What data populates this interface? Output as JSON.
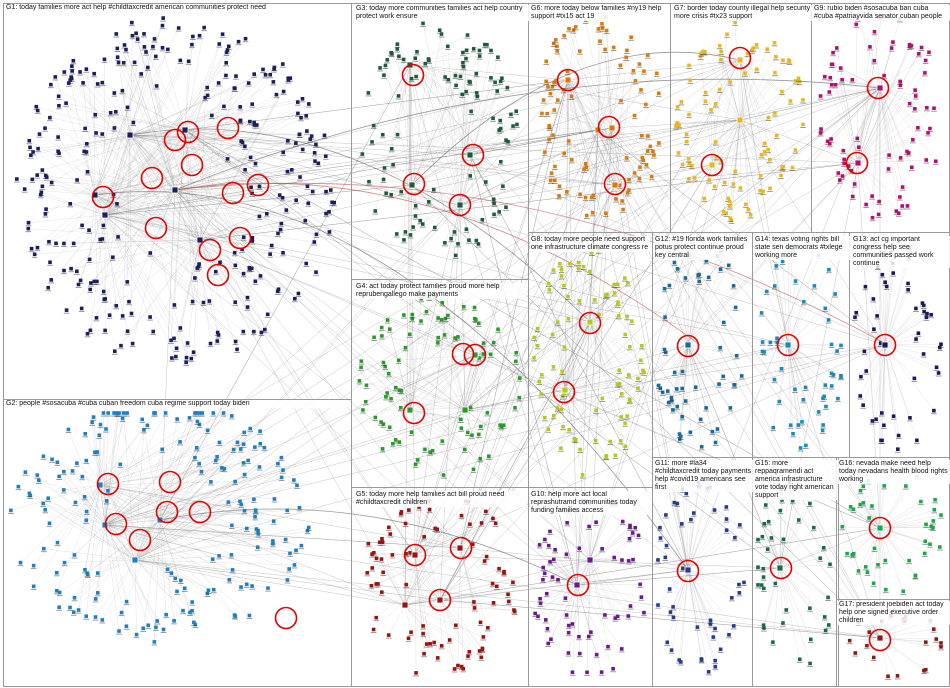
{
  "image_kind": "network graph (NodeXL-style group layout)",
  "colors": {
    "background": "#ffffff",
    "panel_border": "#9a9a9a",
    "edge": "#8c8c8c",
    "highlight_ring": "#e00000",
    "hub_edge_red": "#b04040"
  },
  "groups": [
    {
      "id": "G1",
      "label": "G1: today families more act help #childtaxcredit american communities protect need",
      "color": "#1a1f5c"
    },
    {
      "id": "G2",
      "label": "G2: people #sosacuba #cuba cuban freedom cuba regime support today biden",
      "color": "#1f7fbf"
    },
    {
      "id": "G3",
      "label": "G3: today more communities families act help country protect work ensure",
      "color": "#1e5a3c"
    },
    {
      "id": "G4",
      "label": "G4: act today protect families proud more help reprubengallego make payments",
      "color": "#2a9a2a"
    },
    {
      "id": "G5",
      "label": "G5: today more help families act bill proud need #childtaxcredit children",
      "color": "#9a1212"
    },
    {
      "id": "G6",
      "label": "G6: more today below families #ny19 help support #tx15 act 19",
      "color": "#d97a10"
    },
    {
      "id": "G7",
      "label": "G7: border today county illegal help security more crisis #tx23 support",
      "color": "#e8b820"
    },
    {
      "id": "G8",
      "label": "G8: today more people need support one infrastructure climate congress re",
      "color": "#b8c81a"
    },
    {
      "id": "G9",
      "label": "G9: rubio biden #sosacuba ban cuba #cuba #patriayvida senator cuban people",
      "color": "#b01070"
    },
    {
      "id": "G10",
      "label": "G10: help more act local reprashutramd communities today funding families access",
      "color": "#6a1a8a"
    },
    {
      "id": "G11",
      "label": "G11: more #la34 #childtaxcredit today payments help #covid19 americans see first",
      "color": "#2a3a8a"
    },
    {
      "id": "G12",
      "label": "G12: #19 florida work families potus protect continue proud key central",
      "color": "#1a6a9a"
    },
    {
      "id": "G13",
      "label": "G13: act cg important congress help see communities passed work continue",
      "color": "#1a1a5a"
    },
    {
      "id": "G14",
      "label": "G14: texas voting rights bill state sen democrats #txlege working more",
      "color": "#1a8ab8"
    },
    {
      "id": "G15",
      "label": "G15: more reppaqramendi act america infrastructure vote today right american support",
      "color": "#1a6a4a"
    },
    {
      "id": "G16",
      "label": "G16: nevada make need help today nevadans health blood rights working",
      "color": "#1aa84a"
    },
    {
      "id": "G17",
      "label": "G17: president joebiden act today help one signed executive order children",
      "color": "#8a1a1a"
    }
  ]
}
